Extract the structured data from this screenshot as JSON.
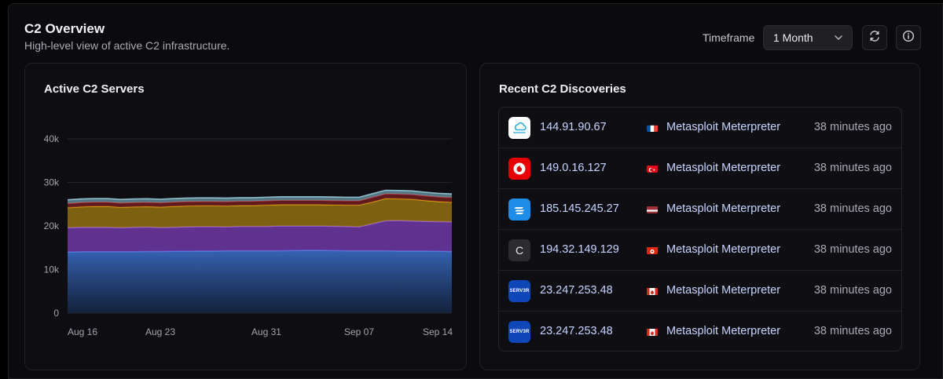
{
  "header": {
    "title": "C2 Overview",
    "subtitle": "High-level view of active C2 infrastructure.",
    "timeframe_label": "Timeframe",
    "timeframe_value": "1 Month",
    "refresh_icon": "refresh-icon",
    "info_icon": "info-icon"
  },
  "chart_card": {
    "title": "Active C2 Servers"
  },
  "chart_data": {
    "type": "area",
    "stacked": true,
    "ylim": [
      0,
      40000
    ],
    "yticks": [
      {
        "value": 0,
        "label": "0"
      },
      {
        "value": 10000,
        "label": "10k"
      },
      {
        "value": 20000,
        "label": "20k"
      },
      {
        "value": 30000,
        "label": "30k"
      },
      {
        "value": 40000,
        "label": "40k"
      }
    ],
    "xticks": [
      {
        "index": 0,
        "label": "Aug 16"
      },
      {
        "index": 7,
        "label": "Aug 23"
      },
      {
        "index": 15,
        "label": "Aug 31"
      },
      {
        "index": 22,
        "label": "Sep 07"
      },
      {
        "index": 29,
        "label": "Sep 14"
      }
    ],
    "x": [
      "Aug 16",
      "Aug 17",
      "Aug 18",
      "Aug 19",
      "Aug 20",
      "Aug 21",
      "Aug 22",
      "Aug 23",
      "Aug 24",
      "Aug 25",
      "Aug 26",
      "Aug 27",
      "Aug 28",
      "Aug 29",
      "Aug 30",
      "Aug 31",
      "Sep 01",
      "Sep 02",
      "Sep 03",
      "Sep 04",
      "Sep 05",
      "Sep 06",
      "Sep 07",
      "Sep 08",
      "Sep 09",
      "Sep 10",
      "Sep 11",
      "Sep 12",
      "Sep 13",
      "Sep 14"
    ],
    "grid": true,
    "legend": "none",
    "series": [
      {
        "color": "#3a6fc8",
        "values": [
          14000,
          14100,
          14100,
          14100,
          14100,
          14100,
          14150,
          14150,
          14200,
          14200,
          14250,
          14250,
          14300,
          14300,
          14300,
          14300,
          14300,
          14350,
          14400,
          14400,
          14350,
          14300,
          14300,
          14300,
          14300,
          14250,
          14250,
          14250,
          14200,
          14150
        ]
      },
      {
        "color": "#7a3fb8",
        "values": [
          5600,
          5600,
          5600,
          5600,
          5500,
          5600,
          5600,
          5500,
          5500,
          5600,
          5600,
          5600,
          5500,
          5600,
          5600,
          5600,
          5700,
          5650,
          5600,
          5600,
          5600,
          5600,
          5500,
          6200,
          6900,
          7000,
          6900,
          6800,
          6800,
          6800
        ]
      },
      {
        "color": "#a37d10",
        "values": [
          4600,
          4700,
          4800,
          4800,
          4700,
          4700,
          4700,
          4700,
          4800,
          4800,
          4800,
          4800,
          4800,
          4800,
          4800,
          4900,
          4900,
          4900,
          4900,
          4900,
          4900,
          4900,
          5000,
          5000,
          5100,
          5000,
          5000,
          4800,
          4600,
          4500
        ]
      },
      {
        "color": "#7a1f22",
        "values": [
          1000,
          1000,
          1000,
          1000,
          1000,
          1000,
          1000,
          1000,
          1000,
          1000,
          1000,
          1000,
          1000,
          1000,
          1000,
          1000,
          1000,
          1000,
          1000,
          1000,
          1000,
          1000,
          1000,
          1100,
          1100,
          1100,
          1100,
          1100,
          1100,
          1100
        ]
      },
      {
        "color": "#6a9aa8",
        "values": [
          800,
          800,
          800,
          800,
          800,
          800,
          800,
          800,
          800,
          800,
          800,
          800,
          800,
          800,
          800,
          800,
          800,
          800,
          800,
          800,
          800,
          800,
          800,
          800,
          800,
          800,
          800,
          800,
          800,
          800
        ]
      }
    ]
  },
  "discoveries": {
    "title": "Recent C2 Discoveries",
    "rows": [
      {
        "ip": "144.91.90.67",
        "provider_icon": "contabo-logo-icon",
        "provider_text": "CONTABO",
        "flag": "france-flag-icon",
        "country": "FR",
        "malware": "Metasploit Meterpreter",
        "time": "38 minutes ago"
      },
      {
        "ip": "149.0.16.127",
        "provider_icon": "vodafone-logo-icon",
        "provider_text": "",
        "flag": "turkey-flag-icon",
        "country": "TR",
        "malware": "Metasploit Meterpreter",
        "time": "38 minutes ago"
      },
      {
        "ip": "185.145.245.27",
        "provider_icon": "hosting-logo-icon",
        "provider_text": "",
        "flag": "latvia-flag-icon",
        "country": "LV",
        "malware": "Metasploit Meterpreter",
        "time": "38 minutes ago"
      },
      {
        "ip": "194.32.149.129",
        "provider_icon": "letter-c-logo-icon",
        "provider_text": "C",
        "flag": "hong-kong-flag-icon",
        "country": "HK",
        "malware": "Metasploit Meterpreter",
        "time": "38 minutes ago"
      },
      {
        "ip": "23.247.253.48",
        "provider_icon": "server-logo-icon",
        "provider_text": "SERV3R",
        "flag": "canada-flag-icon",
        "country": "CA",
        "malware": "Metasploit Meterpreter",
        "time": "38 minutes ago"
      },
      {
        "ip": "23.247.253.48",
        "provider_icon": "server-logo-icon",
        "provider_text": "SERV3R",
        "flag": "canada-flag-icon",
        "country": "CA",
        "malware": "Metasploit Meterpreter",
        "time": "38 minutes ago"
      }
    ]
  }
}
